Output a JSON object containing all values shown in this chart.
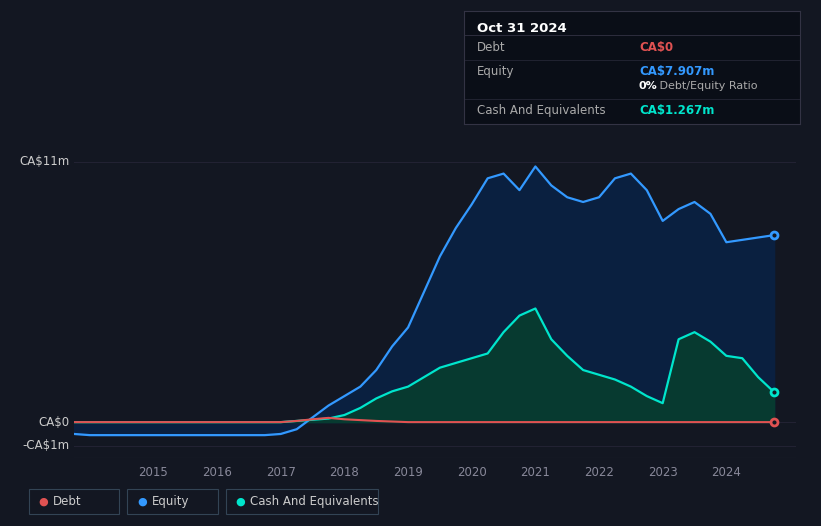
{
  "bg_color": "#131722",
  "plot_bg_color": "#131722",
  "title_box": {
    "date": "Oct 31 2024",
    "debt_label": "Debt",
    "debt_value": "CA$0",
    "equity_label": "Equity",
    "equity_value": "CA$7.907m",
    "ratio_text": " Debt/Equity Ratio",
    "ratio_bold": "0%",
    "cash_label": "Cash And Equivalents",
    "cash_value": "CA$1.267m",
    "debt_color": "#e05252",
    "equity_color": "#3399ff",
    "cash_color": "#00e5cc",
    "text_color": "#aaaaaa",
    "bold_color": "#ffffff",
    "box_bg": "#0a0e17",
    "box_border": "#333344"
  },
  "y_labels": [
    "CA$11m",
    "CA$0",
    "-CA$1m"
  ],
  "y_values": [
    11,
    0,
    -1
  ],
  "x_ticks": [
    2015,
    2016,
    2017,
    2018,
    2019,
    2020,
    2021,
    2022,
    2023,
    2024
  ],
  "grid_color": "#222233",
  "equity_color": "#3399ff",
  "equity_fill": "#0a2040",
  "debt_color": "#e05252",
  "cash_color": "#00e5cc",
  "cash_fill": "#073a30",
  "legend_items": [
    "Debt",
    "Equity",
    "Cash And Equivalents"
  ],
  "legend_colors": [
    "#e05252",
    "#3399ff",
    "#00e5cc"
  ],
  "equity_data_x": [
    2013.75,
    2014.0,
    2014.25,
    2014.5,
    2014.75,
    2015.0,
    2015.25,
    2015.5,
    2015.75,
    2016.0,
    2016.25,
    2016.5,
    2016.75,
    2017.0,
    2017.25,
    2017.5,
    2017.75,
    2018.0,
    2018.25,
    2018.5,
    2018.75,
    2019.0,
    2019.25,
    2019.5,
    2019.75,
    2020.0,
    2020.25,
    2020.5,
    2020.75,
    2021.0,
    2021.25,
    2021.5,
    2021.75,
    2022.0,
    2022.25,
    2022.5,
    2022.75,
    2023.0,
    2023.25,
    2023.5,
    2023.75,
    2024.0,
    2024.25,
    2024.5,
    2024.75
  ],
  "equity_data_y": [
    -0.5,
    -0.55,
    -0.55,
    -0.55,
    -0.55,
    -0.55,
    -0.55,
    -0.55,
    -0.55,
    -0.55,
    -0.55,
    -0.55,
    -0.55,
    -0.5,
    -0.3,
    0.2,
    0.7,
    1.1,
    1.5,
    2.2,
    3.2,
    4.0,
    5.5,
    7.0,
    8.2,
    9.2,
    10.3,
    10.5,
    9.8,
    10.8,
    10.0,
    9.5,
    9.3,
    9.5,
    10.3,
    10.5,
    9.8,
    8.5,
    9.0,
    9.3,
    8.8,
    7.6,
    7.7,
    7.8,
    7.9
  ],
  "debt_data_x": [
    2013.75,
    2014.0,
    2014.5,
    2015.0,
    2015.5,
    2016.0,
    2016.5,
    2017.0,
    2017.25,
    2017.5,
    2017.75,
    2018.0,
    2018.5,
    2019.0,
    2019.5,
    2020.0,
    2020.5,
    2021.0,
    2021.5,
    2022.0,
    2022.5,
    2023.0,
    2023.5,
    2024.0,
    2024.5,
    2024.75
  ],
  "debt_data_y": [
    0.0,
    0.0,
    0.0,
    0.0,
    0.0,
    0.0,
    0.0,
    0.0,
    0.05,
    0.12,
    0.18,
    0.12,
    0.05,
    0.0,
    0.0,
    0.0,
    0.0,
    0.0,
    0.0,
    0.0,
    0.0,
    0.0,
    0.0,
    0.0,
    0.0,
    0.0
  ],
  "cash_data_x": [
    2013.75,
    2014.0,
    2014.25,
    2014.5,
    2014.75,
    2015.0,
    2015.25,
    2015.5,
    2015.75,
    2016.0,
    2016.25,
    2016.5,
    2016.75,
    2017.0,
    2017.25,
    2017.5,
    2017.75,
    2018.0,
    2018.25,
    2018.5,
    2018.75,
    2019.0,
    2019.25,
    2019.5,
    2019.75,
    2020.0,
    2020.25,
    2020.5,
    2020.75,
    2021.0,
    2021.25,
    2021.5,
    2021.75,
    2022.0,
    2022.25,
    2022.5,
    2022.75,
    2023.0,
    2023.25,
    2023.5,
    2023.75,
    2024.0,
    2024.25,
    2024.5,
    2024.75
  ],
  "cash_data_y": [
    0.0,
    0.0,
    0.0,
    0.0,
    0.0,
    0.0,
    0.0,
    0.0,
    0.0,
    0.0,
    0.0,
    0.0,
    0.0,
    0.0,
    0.05,
    0.1,
    0.15,
    0.3,
    0.6,
    1.0,
    1.3,
    1.5,
    1.9,
    2.3,
    2.5,
    2.7,
    2.9,
    3.8,
    4.5,
    4.8,
    3.5,
    2.8,
    2.2,
    2.0,
    1.8,
    1.5,
    1.1,
    0.8,
    3.5,
    3.8,
    3.4,
    2.8,
    2.7,
    1.9,
    1.267
  ],
  "ylim": [
    -1.5,
    12.5
  ],
  "xlim": [
    2013.75,
    2025.1
  ]
}
